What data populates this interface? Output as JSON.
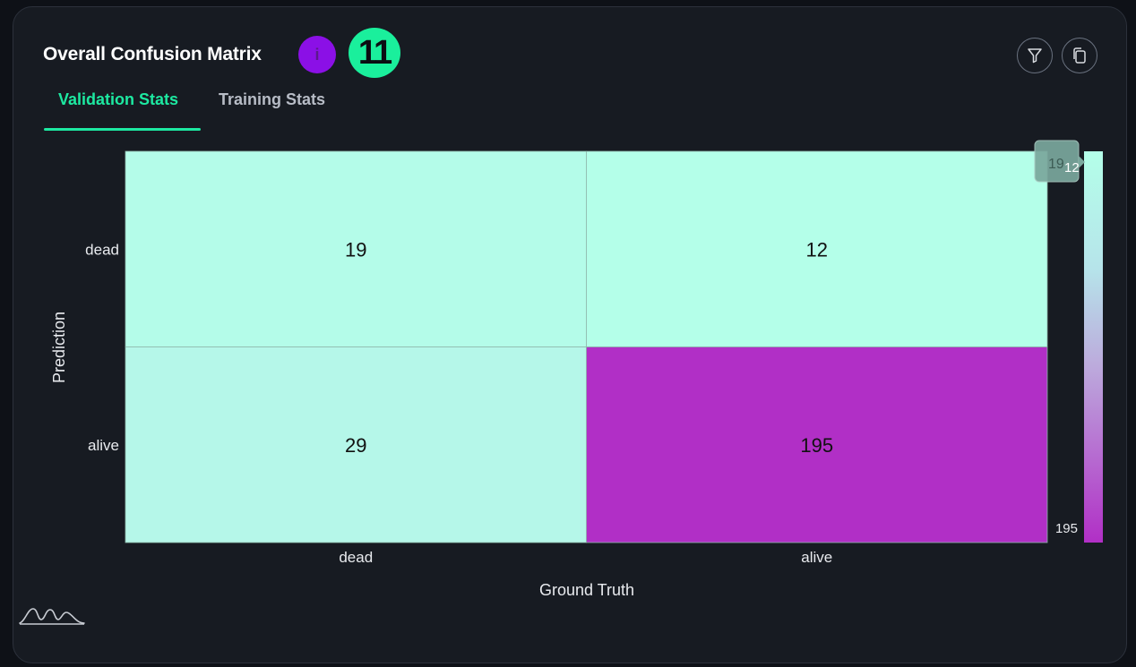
{
  "header": {
    "title": "Overall Confusion Matrix",
    "info_glyph": "i",
    "badge": "11",
    "filter_icon": "filter-icon",
    "copy_icon": "copy-icon"
  },
  "tabs": [
    {
      "label": "Validation Stats",
      "active": true
    },
    {
      "label": "Training Stats",
      "active": false
    }
  ],
  "colors": {
    "accent": "#1de9a1",
    "badge": "#1aef9c",
    "info": "#8b10e6",
    "low": "#b4ffe9",
    "high": "#b12fc6"
  },
  "chart_data": {
    "type": "heatmap",
    "xlabel": "Ground Truth",
    "ylabel": "Prediction",
    "x_categories": [
      "dead",
      "alive"
    ],
    "y_categories": [
      "dead",
      "alive"
    ],
    "values": [
      [
        19,
        12
      ],
      [
        29,
        195
      ]
    ],
    "colorbar": {
      "min": 12,
      "max": 195,
      "min_label": "12",
      "max_label": "195",
      "tooltip_value": "19"
    }
  },
  "footer": {
    "logo_icon": "waveform-logo-icon"
  }
}
